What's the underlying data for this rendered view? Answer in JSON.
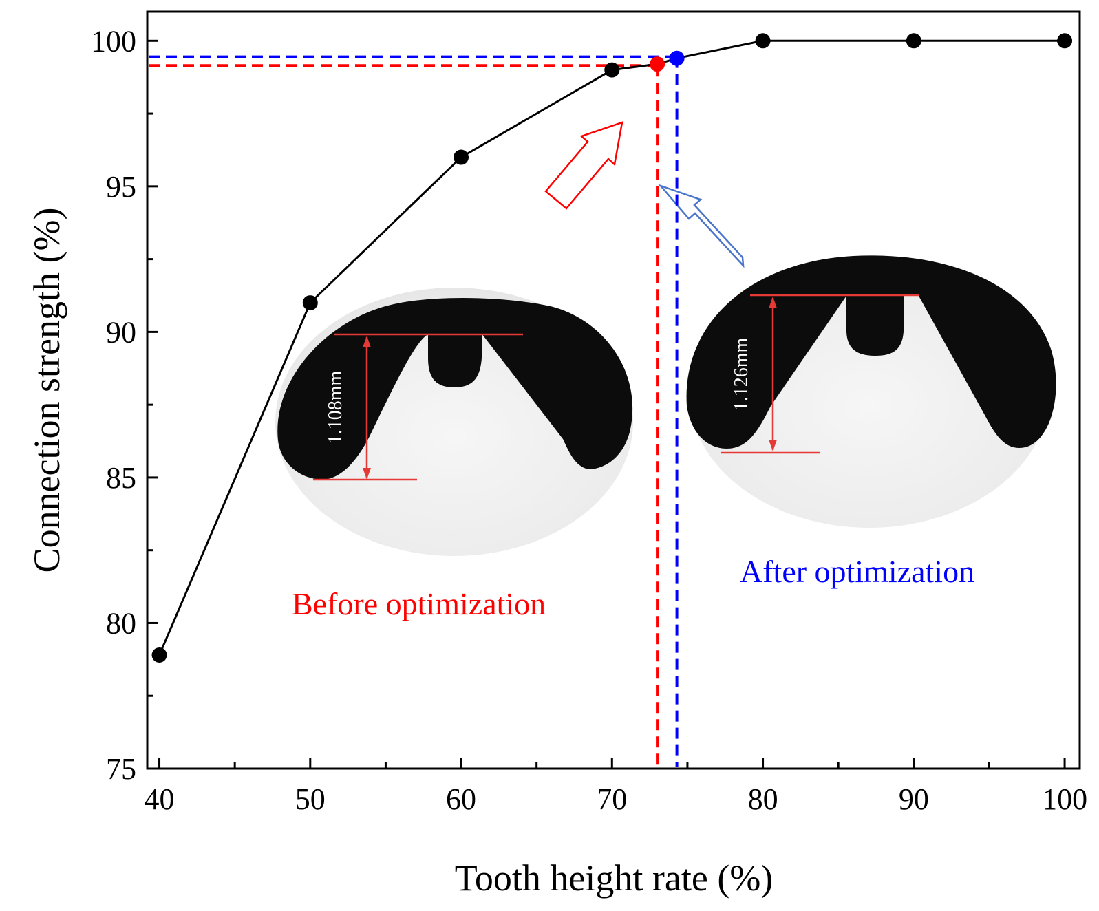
{
  "chart_data": {
    "type": "line",
    "title": "",
    "xlabel": "Tooth height rate (%)",
    "ylabel": "Connection strength (%)",
    "xlim": [
      39.2,
      101
    ],
    "ylim": [
      75,
      101
    ],
    "xticks": [
      "40",
      "50",
      "60",
      "70",
      "80",
      "90",
      "100"
    ],
    "yticks": [
      "75",
      "80",
      "85",
      "90",
      "95",
      "100"
    ],
    "series": [
      {
        "name": "Connection strength",
        "color": "#000000",
        "x": [
          40,
          50,
          60,
          70,
          73,
          74.3,
          80,
          90,
          100
        ],
        "y": [
          78.9,
          91.0,
          96.0,
          99.0,
          99.2,
          99.4,
          100.0,
          100.0,
          100.0
        ],
        "marker_colors": [
          "#000000",
          "#000000",
          "#000000",
          "#000000",
          "#ff0000",
          "#0000ff",
          "#000000",
          "#000000",
          "#000000"
        ]
      }
    ],
    "guides": [
      {
        "name": "before",
        "x": 73.0,
        "y": 99.15,
        "color": "#ff0000"
      },
      {
        "name": "after",
        "x": 74.3,
        "y": 99.45,
        "color": "#0000ff"
      }
    ],
    "annotations": {
      "before_label": "Before optimization",
      "after_label": "After optimization",
      "before_measure": "1.108mm",
      "after_measure": "1.126mm",
      "before_color": "#ff0000",
      "after_color": "#0000ff"
    }
  }
}
